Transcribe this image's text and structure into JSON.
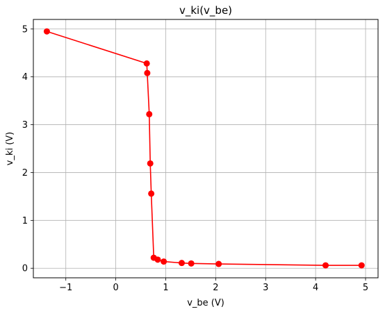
{
  "chart_data": {
    "type": "line",
    "title": "v_ki(v_be)",
    "xlabel": "v_be (V)",
    "ylabel": "v_ki (V)",
    "xlim": [
      -1.65,
      5.25
    ],
    "ylim": [
      -0.2,
      5.2
    ],
    "xticks": [
      -1,
      0,
      1,
      2,
      3,
      4,
      5
    ],
    "yticks": [
      0,
      1,
      2,
      3,
      4,
      5
    ],
    "xtick_labels": [
      "−1",
      "0",
      "1",
      "2",
      "3",
      "4",
      "5"
    ],
    "ytick_labels": [
      "0",
      "1",
      "2",
      "3",
      "4",
      "5"
    ],
    "grid": true,
    "series": [
      {
        "color": "#ff0000",
        "marker": "circle",
        "x": [
          -1.38,
          0.62,
          0.63,
          0.67,
          0.69,
          0.71,
          0.76,
          0.84,
          0.96,
          1.32,
          1.51,
          2.06,
          4.2,
          4.92
        ],
        "y": [
          4.95,
          4.28,
          4.08,
          3.22,
          2.19,
          1.56,
          0.22,
          0.18,
          0.14,
          0.11,
          0.1,
          0.09,
          0.06,
          0.06
        ]
      }
    ]
  }
}
